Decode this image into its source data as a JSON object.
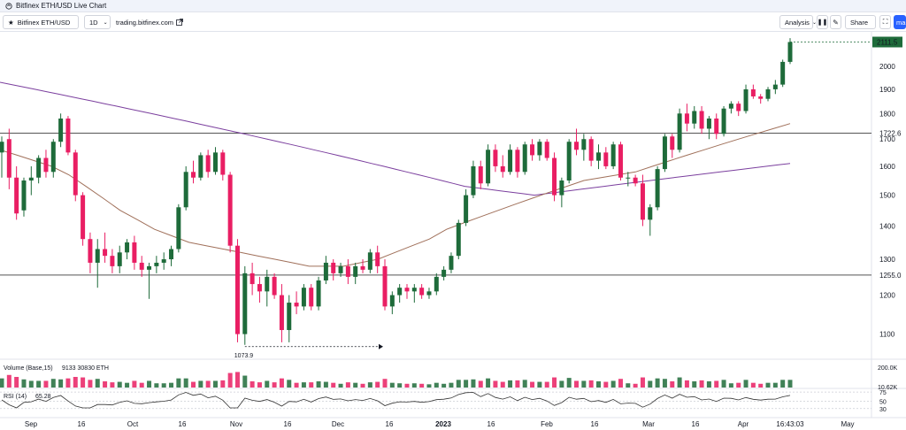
{
  "window_title": "Bitfinex ETH/USD Live Chart",
  "toolbar": {
    "symbol": "Bitfinex ETH/USD",
    "interval": "1D",
    "link_text": "trading.bitfinex.com",
    "analysis_label": "Analysis",
    "share_label": "Share",
    "edge_label": "ma"
  },
  "colors": {
    "up": "#26a69a",
    "down": "#ef5350",
    "candle_up": "#1e6b3a",
    "candle_down": "#e91e63",
    "ma_long": "#7b3f9e",
    "ma_short": "#a0705a",
    "hline": "#555555"
  },
  "chart_data": {
    "type": "candlestick",
    "symbol": "Bitfinex ETH/USD",
    "interval": "1D",
    "price_axis": {
      "scale": "log",
      "ticks": [
        1100,
        1200,
        1300,
        1400,
        1500,
        1600,
        1700,
        1800,
        1900,
        2000
      ],
      "tick_labels": [
        "1100",
        "1200",
        "1300",
        "1400",
        "1500",
        "1600",
        "1700",
        "1800",
        "1900",
        "2000"
      ]
    },
    "time_axis": {
      "labels": [
        "Sep",
        "16",
        "Oct",
        "16",
        "Nov",
        "16",
        "Dec",
        "16",
        "2023",
        "16",
        "Feb",
        "16",
        "Mar",
        "16",
        "Apr",
        "16:43:03",
        "May"
      ]
    },
    "last_price": "2111.5",
    "horizontal_lines": [
      {
        "value": 1722.6,
        "label": "1722.6"
      },
      {
        "value": 1255.0,
        "label": "1255.0"
      }
    ],
    "annotations": [
      {
        "text": "1073.9",
        "value": 1073.9,
        "type": "low_marker"
      }
    ],
    "candles": [
      {
        "t": 1,
        "o": 1650,
        "h": 1710,
        "l": 1560,
        "c": 1690
      },
      {
        "t": 2,
        "o": 1700,
        "h": 1740,
        "l": 1520,
        "c": 1560
      },
      {
        "t": 3,
        "o": 1560,
        "h": 1600,
        "l": 1420,
        "c": 1440
      },
      {
        "t": 4,
        "o": 1450,
        "h": 1560,
        "l": 1430,
        "c": 1550
      },
      {
        "t": 5,
        "o": 1550,
        "h": 1600,
        "l": 1500,
        "c": 1560
      },
      {
        "t": 6,
        "o": 1560,
        "h": 1640,
        "l": 1540,
        "c": 1630
      },
      {
        "t": 7,
        "o": 1630,
        "h": 1660,
        "l": 1560,
        "c": 1580
      },
      {
        "t": 8,
        "o": 1580,
        "h": 1700,
        "l": 1560,
        "c": 1690
      },
      {
        "t": 9,
        "o": 1690,
        "h": 1800,
        "l": 1670,
        "c": 1780
      },
      {
        "t": 10,
        "o": 1780,
        "h": 1790,
        "l": 1640,
        "c": 1650
      },
      {
        "t": 11,
        "o": 1650,
        "h": 1660,
        "l": 1480,
        "c": 1500
      },
      {
        "t": 12,
        "o": 1500,
        "h": 1510,
        "l": 1340,
        "c": 1360
      },
      {
        "t": 13,
        "o": 1360,
        "h": 1380,
        "l": 1260,
        "c": 1290
      },
      {
        "t": 14,
        "o": 1290,
        "h": 1360,
        "l": 1220,
        "c": 1330
      },
      {
        "t": 15,
        "o": 1330,
        "h": 1380,
        "l": 1290,
        "c": 1310
      },
      {
        "t": 16,
        "o": 1310,
        "h": 1330,
        "l": 1260,
        "c": 1280
      },
      {
        "t": 17,
        "o": 1280,
        "h": 1340,
        "l": 1260,
        "c": 1320
      },
      {
        "t": 18,
        "o": 1320,
        "h": 1360,
        "l": 1300,
        "c": 1350
      },
      {
        "t": 19,
        "o": 1350,
        "h": 1370,
        "l": 1270,
        "c": 1290
      },
      {
        "t": 20,
        "o": 1290,
        "h": 1310,
        "l": 1250,
        "c": 1270
      },
      {
        "t": 21,
        "o": 1270,
        "h": 1290,
        "l": 1190,
        "c": 1280
      },
      {
        "t": 22,
        "o": 1280,
        "h": 1310,
        "l": 1260,
        "c": 1290
      },
      {
        "t": 23,
        "o": 1290,
        "h": 1320,
        "l": 1270,
        "c": 1300
      },
      {
        "t": 24,
        "o": 1300,
        "h": 1340,
        "l": 1280,
        "c": 1330
      },
      {
        "t": 25,
        "o": 1330,
        "h": 1470,
        "l": 1320,
        "c": 1460
      },
      {
        "t": 26,
        "o": 1460,
        "h": 1600,
        "l": 1450,
        "c": 1580
      },
      {
        "t": 27,
        "o": 1580,
        "h": 1620,
        "l": 1540,
        "c": 1560
      },
      {
        "t": 28,
        "o": 1560,
        "h": 1650,
        "l": 1550,
        "c": 1640
      },
      {
        "t": 29,
        "o": 1640,
        "h": 1660,
        "l": 1560,
        "c": 1580
      },
      {
        "t": 30,
        "o": 1580,
        "h": 1670,
        "l": 1570,
        "c": 1650
      },
      {
        "t": 31,
        "o": 1650,
        "h": 1660,
        "l": 1550,
        "c": 1570
      },
      {
        "t": 32,
        "o": 1570,
        "h": 1580,
        "l": 1320,
        "c": 1340
      },
      {
        "t": 33,
        "o": 1340,
        "h": 1360,
        "l": 1080,
        "c": 1100
      },
      {
        "t": 34,
        "o": 1100,
        "h": 1280,
        "l": 1073.9,
        "c": 1260
      },
      {
        "t": 35,
        "o": 1260,
        "h": 1290,
        "l": 1200,
        "c": 1230
      },
      {
        "t": 36,
        "o": 1230,
        "h": 1250,
        "l": 1180,
        "c": 1210
      },
      {
        "t": 37,
        "o": 1210,
        "h": 1270,
        "l": 1170,
        "c": 1250
      },
      {
        "t": 38,
        "o": 1250,
        "h": 1260,
        "l": 1190,
        "c": 1200
      },
      {
        "t": 39,
        "o": 1200,
        "h": 1230,
        "l": 1080,
        "c": 1110
      },
      {
        "t": 40,
        "o": 1110,
        "h": 1200,
        "l": 1080,
        "c": 1180
      },
      {
        "t": 41,
        "o": 1180,
        "h": 1210,
        "l": 1150,
        "c": 1170
      },
      {
        "t": 42,
        "o": 1170,
        "h": 1230,
        "l": 1160,
        "c": 1220
      },
      {
        "t": 43,
        "o": 1220,
        "h": 1230,
        "l": 1160,
        "c": 1170
      },
      {
        "t": 44,
        "o": 1170,
        "h": 1250,
        "l": 1160,
        "c": 1240
      },
      {
        "t": 45,
        "o": 1240,
        "h": 1310,
        "l": 1230,
        "c": 1290
      },
      {
        "t": 46,
        "o": 1290,
        "h": 1300,
        "l": 1240,
        "c": 1260
      },
      {
        "t": 47,
        "o": 1260,
        "h": 1290,
        "l": 1250,
        "c": 1280
      },
      {
        "t": 48,
        "o": 1280,
        "h": 1300,
        "l": 1230,
        "c": 1250
      },
      {
        "t": 49,
        "o": 1250,
        "h": 1290,
        "l": 1230,
        "c": 1280
      },
      {
        "t": 50,
        "o": 1280,
        "h": 1300,
        "l": 1260,
        "c": 1270
      },
      {
        "t": 51,
        "o": 1270,
        "h": 1330,
        "l": 1260,
        "c": 1320
      },
      {
        "t": 52,
        "o": 1320,
        "h": 1340,
        "l": 1260,
        "c": 1280
      },
      {
        "t": 53,
        "o": 1280,
        "h": 1300,
        "l": 1160,
        "c": 1170
      },
      {
        "t": 54,
        "o": 1170,
        "h": 1210,
        "l": 1150,
        "c": 1200
      },
      {
        "t": 55,
        "o": 1200,
        "h": 1230,
        "l": 1180,
        "c": 1220
      },
      {
        "t": 56,
        "o": 1220,
        "h": 1230,
        "l": 1190,
        "c": 1210
      },
      {
        "t": 57,
        "o": 1210,
        "h": 1230,
        "l": 1180,
        "c": 1220
      },
      {
        "t": 58,
        "o": 1220,
        "h": 1230,
        "l": 1190,
        "c": 1200
      },
      {
        "t": 59,
        "o": 1200,
        "h": 1220,
        "l": 1190,
        "c": 1210
      },
      {
        "t": 60,
        "o": 1210,
        "h": 1260,
        "l": 1200,
        "c": 1250
      },
      {
        "t": 61,
        "o": 1250,
        "h": 1280,
        "l": 1240,
        "c": 1270
      },
      {
        "t": 62,
        "o": 1270,
        "h": 1320,
        "l": 1260,
        "c": 1310
      },
      {
        "t": 63,
        "o": 1310,
        "h": 1420,
        "l": 1300,
        "c": 1410
      },
      {
        "t": 64,
        "o": 1410,
        "h": 1520,
        "l": 1400,
        "c": 1500
      },
      {
        "t": 65,
        "o": 1500,
        "h": 1620,
        "l": 1490,
        "c": 1600
      },
      {
        "t": 66,
        "o": 1600,
        "h": 1620,
        "l": 1520,
        "c": 1540
      },
      {
        "t": 67,
        "o": 1540,
        "h": 1680,
        "l": 1530,
        "c": 1660
      },
      {
        "t": 68,
        "o": 1660,
        "h": 1680,
        "l": 1580,
        "c": 1600
      },
      {
        "t": 69,
        "o": 1600,
        "h": 1640,
        "l": 1560,
        "c": 1580
      },
      {
        "t": 70,
        "o": 1580,
        "h": 1680,
        "l": 1570,
        "c": 1660
      },
      {
        "t": 71,
        "o": 1660,
        "h": 1670,
        "l": 1560,
        "c": 1580
      },
      {
        "t": 72,
        "o": 1580,
        "h": 1690,
        "l": 1570,
        "c": 1680
      },
      {
        "t": 73,
        "o": 1680,
        "h": 1700,
        "l": 1620,
        "c": 1640
      },
      {
        "t": 74,
        "o": 1640,
        "h": 1700,
        "l": 1620,
        "c": 1690
      },
      {
        "t": 75,
        "o": 1690,
        "h": 1700,
        "l": 1620,
        "c": 1630
      },
      {
        "t": 76,
        "o": 1630,
        "h": 1650,
        "l": 1480,
        "c": 1500
      },
      {
        "t": 77,
        "o": 1500,
        "h": 1560,
        "l": 1460,
        "c": 1550
      },
      {
        "t": 78,
        "o": 1550,
        "h": 1700,
        "l": 1540,
        "c": 1690
      },
      {
        "t": 79,
        "o": 1690,
        "h": 1740,
        "l": 1640,
        "c": 1660
      },
      {
        "t": 80,
        "o": 1660,
        "h": 1720,
        "l": 1620,
        "c": 1700
      },
      {
        "t": 81,
        "o": 1700,
        "h": 1710,
        "l": 1600,
        "c": 1620
      },
      {
        "t": 82,
        "o": 1620,
        "h": 1680,
        "l": 1590,
        "c": 1650
      },
      {
        "t": 83,
        "o": 1650,
        "h": 1670,
        "l": 1590,
        "c": 1600
      },
      {
        "t": 84,
        "o": 1600,
        "h": 1690,
        "l": 1590,
        "c": 1680
      },
      {
        "t": 85,
        "o": 1680,
        "h": 1690,
        "l": 1550,
        "c": 1560
      },
      {
        "t": 86,
        "o": 1560,
        "h": 1580,
        "l": 1530,
        "c": 1560
      },
      {
        "t": 87,
        "o": 1560,
        "h": 1570,
        "l": 1530,
        "c": 1540
      },
      {
        "t": 88,
        "o": 1540,
        "h": 1570,
        "l": 1400,
        "c": 1420
      },
      {
        "t": 89,
        "o": 1420,
        "h": 1470,
        "l": 1370,
        "c": 1460
      },
      {
        "t": 90,
        "o": 1460,
        "h": 1600,
        "l": 1450,
        "c": 1590
      },
      {
        "t": 91,
        "o": 1590,
        "h": 1720,
        "l": 1580,
        "c": 1710
      },
      {
        "t": 92,
        "o": 1710,
        "h": 1720,
        "l": 1630,
        "c": 1660
      },
      {
        "t": 93,
        "o": 1660,
        "h": 1820,
        "l": 1650,
        "c": 1800
      },
      {
        "t": 94,
        "o": 1800,
        "h": 1840,
        "l": 1730,
        "c": 1760
      },
      {
        "t": 95,
        "o": 1760,
        "h": 1830,
        "l": 1740,
        "c": 1810
      },
      {
        "t": 96,
        "o": 1810,
        "h": 1830,
        "l": 1720,
        "c": 1740
      },
      {
        "t": 97,
        "o": 1740,
        "h": 1790,
        "l": 1700,
        "c": 1780
      },
      {
        "t": 98,
        "o": 1780,
        "h": 1800,
        "l": 1700,
        "c": 1720
      },
      {
        "t": 99,
        "o": 1720,
        "h": 1830,
        "l": 1710,
        "c": 1820
      },
      {
        "t": 100,
        "o": 1820,
        "h": 1850,
        "l": 1800,
        "c": 1840
      },
      {
        "t": 101,
        "o": 1840,
        "h": 1850,
        "l": 1790,
        "c": 1810
      },
      {
        "t": 102,
        "o": 1810,
        "h": 1920,
        "l": 1800,
        "c": 1900
      },
      {
        "t": 103,
        "o": 1900,
        "h": 1920,
        "l": 1860,
        "c": 1870
      },
      {
        "t": 104,
        "o": 1870,
        "h": 1880,
        "l": 1840,
        "c": 1860
      },
      {
        "t": 105,
        "o": 1860,
        "h": 1910,
        "l": 1850,
        "c": 1900
      },
      {
        "t": 106,
        "o": 1900,
        "h": 1940,
        "l": 1880,
        "c": 1920
      },
      {
        "t": 107,
        "o": 1920,
        "h": 2030,
        "l": 1910,
        "c": 2020
      },
      {
        "t": 108,
        "o": 2020,
        "h": 2130,
        "l": 2010,
        "c": 2111.5
      }
    ],
    "ma_long": [
      1930,
      1920,
      1910,
      1900,
      1890,
      1880,
      1870,
      1860,
      1850,
      1840,
      1830,
      1820,
      1810,
      1800,
      1790,
      1780,
      1770,
      1760,
      1750,
      1740,
      1730,
      1720,
      1710,
      1700,
      1690,
      1680,
      1670,
      1660,
      1650,
      1640,
      1630,
      1620,
      1610,
      1600,
      1590,
      1580,
      1570,
      1560,
      1550,
      1540,
      1530,
      1525,
      1520,
      1515,
      1510,
      1505,
      1500,
      1505,
      1510,
      1515,
      1520,
      1525,
      1530,
      1535,
      1540,
      1545,
      1550,
      1555,
      1560,
      1565,
      1570,
      1575,
      1580,
      1585,
      1590,
      1595,
      1600,
      1605,
      1610
    ],
    "ma_short": [
      1660,
      1640,
      1620,
      1600,
      1570,
      1530,
      1490,
      1450,
      1420,
      1390,
      1370,
      1350,
      1340,
      1330,
      1320,
      1310,
      1300,
      1290,
      1280,
      1280,
      1280,
      1290,
      1300,
      1320,
      1340,
      1360,
      1390,
      1410,
      1430,
      1450,
      1470,
      1490,
      1510,
      1530,
      1550,
      1560,
      1570,
      1580,
      1600,
      1620,
      1640,
      1660,
      1680,
      1700,
      1720,
      1740,
      1760
    ],
    "volume": {
      "label": "Volume (Base,15)",
      "values_text": "9133  30830 ETH",
      "axis_labels": [
        "200.0K",
        "10.62K"
      ]
    },
    "rsi": {
      "label": "RSI (14)",
      "value": "65.28",
      "axis_labels": [
        "75",
        "50",
        "30"
      ]
    }
  }
}
